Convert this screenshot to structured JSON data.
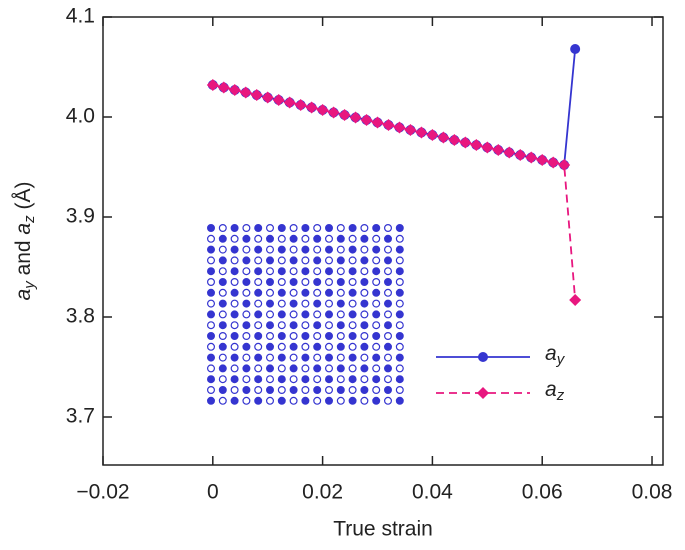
{
  "chart_data": {
    "type": "line",
    "xlabel": "True strain",
    "ylabel": "ay and az (Å)",
    "x": [
      0,
      0.002,
      0.004,
      0.006,
      0.008,
      0.01,
      0.012,
      0.014,
      0.016,
      0.018,
      0.02,
      0.022,
      0.024,
      0.026,
      0.028,
      0.03,
      0.032,
      0.034,
      0.036,
      0.038,
      0.04,
      0.042,
      0.044,
      0.046,
      0.048,
      0.05,
      0.052,
      0.054,
      0.056,
      0.058,
      0.06,
      0.062,
      0.064,
      0.066
    ],
    "series": [
      {
        "name": "ay",
        "color": "#3535d0",
        "marker": "circle",
        "dash": false,
        "values": [
          4.032,
          4.0295,
          4.027,
          4.0245,
          4.022,
          4.0195,
          4.017,
          4.0145,
          4.012,
          4.0095,
          4.007,
          4.0045,
          4.002,
          3.9995,
          3.997,
          3.9945,
          3.992,
          3.9895,
          3.987,
          3.9845,
          3.982,
          3.9795,
          3.977,
          3.9745,
          3.972,
          3.9695,
          3.967,
          3.9645,
          3.962,
          3.9595,
          3.957,
          3.9545,
          3.952,
          4.068
        ]
      },
      {
        "name": "az",
        "color": "#e8177f",
        "marker": "diamond",
        "dash": true,
        "values": [
          4.032,
          4.0295,
          4.027,
          4.0245,
          4.022,
          4.0195,
          4.017,
          4.0145,
          4.012,
          4.0095,
          4.007,
          4.0045,
          4.002,
          3.9995,
          3.997,
          3.9945,
          3.992,
          3.9895,
          3.987,
          3.9845,
          3.982,
          3.9795,
          3.977,
          3.9745,
          3.972,
          3.9695,
          3.967,
          3.9645,
          3.962,
          3.9595,
          3.957,
          3.9545,
          3.952,
          3.817
        ]
      }
    ],
    "xlim": [
      -0.02,
      0.082
    ],
    "xticks": [
      {
        "value": -0.02,
        "label": "−0.02"
      },
      0,
      0.02,
      0.04,
      0.06,
      0.08
    ],
    "ylim": [
      3.652,
      4.1
    ],
    "yticks": [
      3.7,
      3.8,
      3.9,
      {
        "value": 4.0,
        "label": "4.0"
      },
      4.1
    ]
  }
}
